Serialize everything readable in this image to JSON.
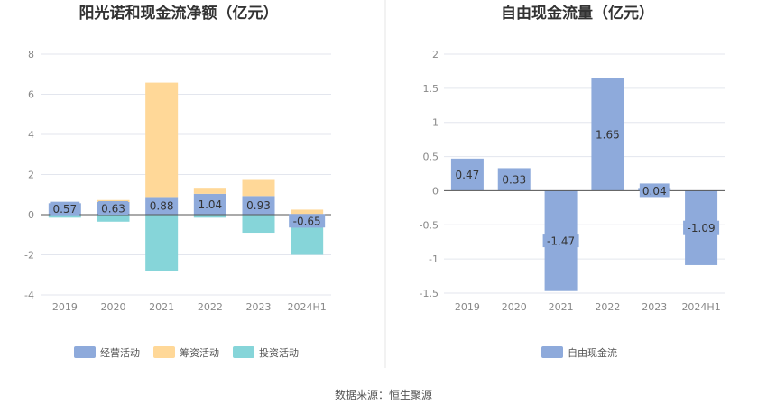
{
  "chart_data": [
    {
      "type": "bar",
      "stacked": true,
      "title": "阳光诺和现金流净额（亿元）",
      "categories": [
        "2019",
        "2020",
        "2021",
        "2022",
        "2023",
        "2024H1"
      ],
      "ylim": [
        -4,
        8
      ],
      "yticks": [
        "8",
        "6",
        "4",
        "2",
        "0",
        "-2",
        "-4"
      ],
      "grid": true,
      "legend_position": "bottom",
      "series": [
        {
          "name": "经营活动",
          "color": "#8eaadb",
          "values": [
            0.57,
            0.63,
            0.88,
            1.04,
            0.93,
            -0.65
          ],
          "labels": [
            "0.57",
            "0.63",
            "0.88",
            "1.04",
            "0.93",
            "-0.65"
          ]
        },
        {
          "name": "筹资活动",
          "color": "#ffd898",
          "values": [
            0.0,
            0.1,
            5.7,
            0.3,
            0.8,
            0.25
          ]
        },
        {
          "name": "投资活动",
          "color": "#86d5d9",
          "values": [
            -0.15,
            -0.35,
            -2.8,
            -0.15,
            -0.9,
            -1.35
          ]
        }
      ]
    },
    {
      "type": "bar",
      "title": "自由现金流量（亿元）",
      "categories": [
        "2019",
        "2020",
        "2021",
        "2022",
        "2023",
        "2024H1"
      ],
      "ylim": [
        -1.5,
        2
      ],
      "yticks": [
        "2",
        "1.5",
        "1",
        "0.5",
        "0",
        "-0.5",
        "-1",
        "-1.5"
      ],
      "grid": true,
      "legend_position": "bottom",
      "series": [
        {
          "name": "自由现金流",
          "color": "#8eaadb",
          "values": [
            0.47,
            0.33,
            -1.47,
            1.65,
            0.04,
            -1.09
          ],
          "labels": [
            "0.47",
            "0.33",
            "-1.47",
            "1.65",
            "0.04",
            "-1.09"
          ]
        }
      ]
    }
  ],
  "footer": {
    "source": "数据来源：恒生聚源"
  }
}
